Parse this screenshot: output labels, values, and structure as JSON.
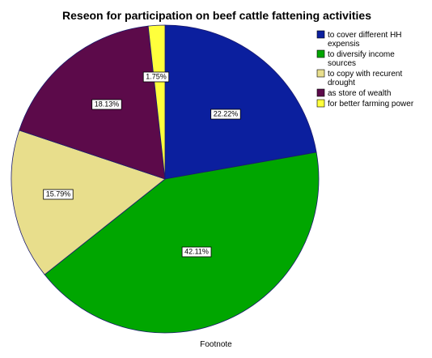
{
  "chart_data": {
    "type": "pie",
    "title": "Reseon for participation on beef cattle fattening activities",
    "footnote": "Footnote",
    "legend_position": "top-right",
    "start": "12 o'clock, clockwise",
    "slices": [
      {
        "label": "to cover different HH expensis",
        "value": 22.22,
        "value_label": "22.22%",
        "color": "#0b1f9e"
      },
      {
        "label": "to diversify income sources",
        "value": 42.11,
        "value_label": "42.11%",
        "color": "#00a600"
      },
      {
        "label": "to copy with recurent drought",
        "value": 15.79,
        "value_label": "15.79%",
        "color": "#e8de8c"
      },
      {
        "label": "as store of wealth",
        "value": 18.13,
        "value_label": "18.13%",
        "color": "#5c0a4a"
      },
      {
        "label": "for better farming power",
        "value": 1.75,
        "value_label": "1.75%",
        "color": "#ffff3c"
      }
    ],
    "legend_lines": [
      [
        "to cover different HH",
        "expensis"
      ],
      [
        "to diversify income",
        "sources"
      ],
      [
        "to copy with recurent",
        "drought"
      ],
      [
        "as store of wealth"
      ],
      [
        "for better farming power"
      ]
    ]
  }
}
